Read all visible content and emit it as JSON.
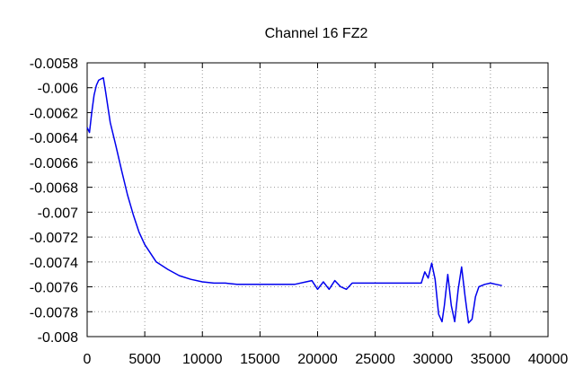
{
  "chart_data": {
    "type": "line",
    "title": "Channel 16 FZ2",
    "xlabel": "",
    "ylabel": "",
    "xlim": [
      0,
      40000
    ],
    "ylim": [
      -0.008,
      -0.0058
    ],
    "x_ticks": [
      "0",
      "5000",
      "10000",
      "15000",
      "20000",
      "25000",
      "30000",
      "35000",
      "40000"
    ],
    "y_ticks": [
      "-0.0058",
      "-0.006",
      "-0.0062",
      "-0.0064",
      "-0.0066",
      "-0.0068",
      "-0.007",
      "-0.0072",
      "-0.0074",
      "-0.0076",
      "-0.0078",
      "-0.008"
    ],
    "grid": true,
    "legend": "none",
    "series": [
      {
        "color": "#0000ee",
        "x": [
          0,
          200,
          400,
          600,
          800,
          1000,
          1200,
          1400,
          1600,
          2000,
          2500,
          3000,
          3500,
          4000,
          4500,
          5000,
          6000,
          7000,
          8000,
          9000,
          10000,
          11000,
          12000,
          13000,
          14000,
          15000,
          16000,
          17000,
          18000,
          19000,
          19500,
          20000,
          20500,
          21000,
          21500,
          22000,
          22500,
          23000,
          24000,
          25000,
          26000,
          27000,
          28000,
          29000,
          29300,
          29600,
          29900,
          30200,
          30500,
          30800,
          31000,
          31300,
          31600,
          31900,
          32200,
          32500,
          32800,
          33100,
          33400,
          33700,
          34000,
          34500,
          35000,
          35500,
          36000
        ],
        "y": [
          -0.00632,
          -0.00636,
          -0.0062,
          -0.00606,
          -0.00598,
          -0.00594,
          -0.00593,
          -0.00592,
          -0.00603,
          -0.00628,
          -0.00647,
          -0.00667,
          -0.00686,
          -0.00702,
          -0.00716,
          -0.00726,
          -0.0074,
          -0.00746,
          -0.00751,
          -0.00754,
          -0.00756,
          -0.00757,
          -0.00757,
          -0.00758,
          -0.00758,
          -0.00758,
          -0.00758,
          -0.00758,
          -0.00758,
          -0.00756,
          -0.00755,
          -0.00762,
          -0.00756,
          -0.00762,
          -0.00755,
          -0.0076,
          -0.00762,
          -0.00757,
          -0.00757,
          -0.00757,
          -0.00757,
          -0.00757,
          -0.00757,
          -0.00757,
          -0.00748,
          -0.00753,
          -0.00741,
          -0.00754,
          -0.00782,
          -0.00788,
          -0.00775,
          -0.0075,
          -0.00775,
          -0.00788,
          -0.00762,
          -0.00744,
          -0.00768,
          -0.00789,
          -0.00786,
          -0.00768,
          -0.0076,
          -0.00758,
          -0.00757,
          -0.00758,
          -0.00759
        ]
      }
    ]
  }
}
